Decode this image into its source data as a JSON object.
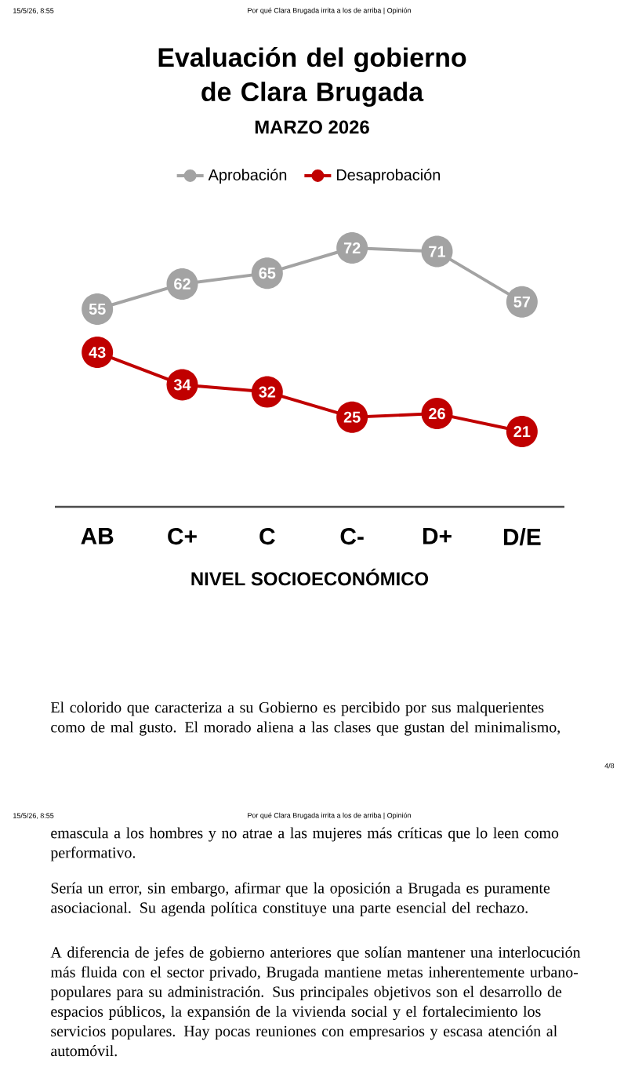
{
  "chart_data": {
    "type": "line",
    "title": "Evaluación del gobierno de Clara Brugada",
    "subtitle": "MARZO 2026",
    "xlabel": "NIVEL SOCIOECONÓMICO",
    "categories": [
      "AB",
      "C+",
      "C",
      "C-",
      "D+",
      "D/E"
    ],
    "series": [
      {
        "name": "Aprobación",
        "color": "#a3a3a3",
        "values": [
          55,
          62,
          65,
          72,
          71,
          57
        ]
      },
      {
        "name": "Desaprobación",
        "color": "#c00000",
        "values": [
          43,
          34,
          32,
          25,
          26,
          21
        ]
      }
    ],
    "tick_labels": "x",
    "data_labels": true,
    "marker": "circle",
    "legend": "top",
    "annotations": [
      "15/5/26, 8:55",
      "Por qué Clara Brugada irrita a los de arriba | Opinión",
      "El colorido que caracteriza a su Gobierno es percibido por sus malquerientes como de mal gusto. El morado aliena a las clases que gustan del minimalismo,",
      "4/8",
      "15/5/26, 8:55",
      "Por qué Clara Brugada irrita a los de arriba | Opinión",
      "emascula a los hombres y no atrae a las mujeres más críticas que lo leen como performativo.",
      "Sería un error, sin embargo, afirmar que la oposición a Brugada es puramente asociacional. Su agenda política constituye una parte esencial del rechazo.",
      "A diferencia de jefes de gobierno anteriores que solían mantener una interlocución más fluida con el sector privado, Brugada mantiene metas inherentemente urbano-populares para su administración. Sus principales objetivos son el desarrollo de espacios públicos, la expansión de la vivienda social y el fortalecimiento los servicios populares. Hay pocas reuniones con empresarios y escasa atención al automóvil."
    ]
  }
}
